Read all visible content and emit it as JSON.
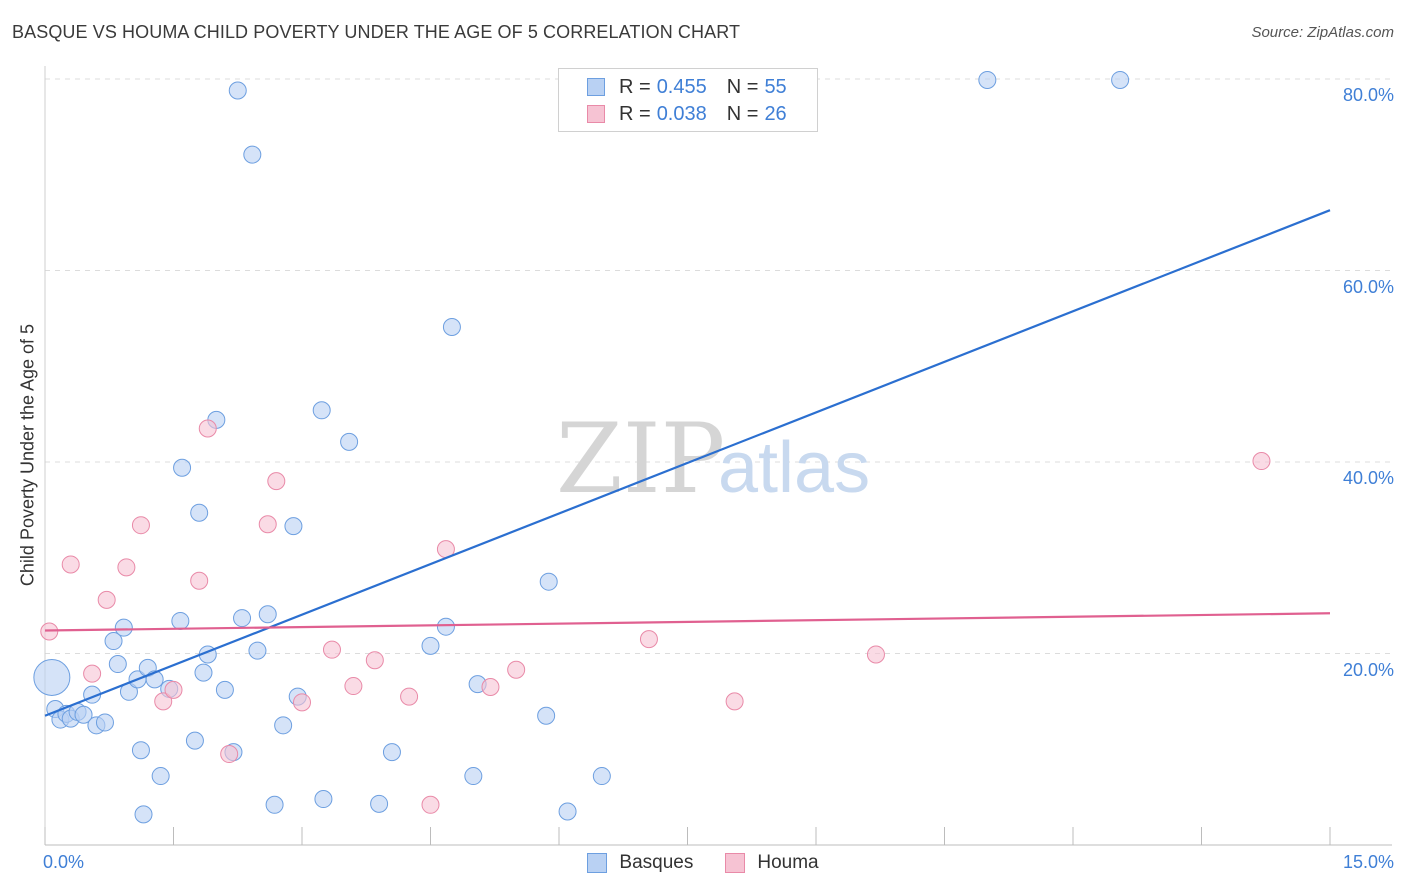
{
  "chart_data": {
    "type": "scatter",
    "title": "BASQUE VS HOUMA CHILD POVERTY UNDER THE AGE OF 5 CORRELATION CHART",
    "source": "Source: ZipAtlas.com",
    "xlabel": "",
    "ylabel": "Child Poverty Under the Age of 5",
    "xlim": [
      0,
      15
    ],
    "ylim": [
      0,
      80
    ],
    "x_ticks": [
      "0.0%",
      "15.0%"
    ],
    "y_ticks": [
      {
        "value": 20,
        "label": "20.0%"
      },
      {
        "value": 40,
        "label": "40.0%"
      },
      {
        "value": 60,
        "label": "60.0%"
      },
      {
        "value": 80,
        "label": "80.0%"
      }
    ],
    "watermark": {
      "zip": "ZIP",
      "atlas": "atlas"
    },
    "legend": [
      {
        "r_label": "R =",
        "r": "0.455",
        "n_label": "N =",
        "n": "55"
      },
      {
        "r_label": "R =",
        "r": "0.038",
        "n_label": "N =",
        "n": "26"
      }
    ],
    "series": [
      {
        "name": "Basques",
        "color": "#6d9fe0",
        "fill": "#b9d1f3",
        "line_color": "#2b6fd0",
        "trend": {
          "x": [
            0,
            15
          ],
          "y": [
            13.5,
            66.3
          ]
        },
        "points": [
          {
            "x": 0.08,
            "y": 17.5,
            "size": "large"
          },
          {
            "x": 0.12,
            "y": 14.2
          },
          {
            "x": 0.18,
            "y": 13.1
          },
          {
            "x": 0.25,
            "y": 13.7
          },
          {
            "x": 0.3,
            "y": 13.2
          },
          {
            "x": 0.38,
            "y": 13.9
          },
          {
            "x": 0.45,
            "y": 13.6
          },
          {
            "x": 0.55,
            "y": 15.7
          },
          {
            "x": 0.6,
            "y": 12.5
          },
          {
            "x": 0.7,
            "y": 12.8
          },
          {
            "x": 0.8,
            "y": 21.3
          },
          {
            "x": 0.85,
            "y": 18.9
          },
          {
            "x": 0.92,
            "y": 22.7
          },
          {
            "x": 0.98,
            "y": 16.0
          },
          {
            "x": 1.08,
            "y": 17.3
          },
          {
            "x": 1.2,
            "y": 18.5
          },
          {
            "x": 1.28,
            "y": 17.3
          },
          {
            "x": 1.12,
            "y": 9.9
          },
          {
            "x": 1.35,
            "y": 7.2
          },
          {
            "x": 1.15,
            "y": 3.2
          },
          {
            "x": 1.45,
            "y": 16.3
          },
          {
            "x": 1.58,
            "y": 23.4
          },
          {
            "x": 1.6,
            "y": 39.4
          },
          {
            "x": 1.75,
            "y": 10.9
          },
          {
            "x": 1.8,
            "y": 34.7
          },
          {
            "x": 1.85,
            "y": 18.0
          },
          {
            "x": 1.9,
            "y": 19.9
          },
          {
            "x": 2.0,
            "y": 44.4
          },
          {
            "x": 2.1,
            "y": 16.2
          },
          {
            "x": 2.2,
            "y": 9.7
          },
          {
            "x": 2.25,
            "y": 78.8
          },
          {
            "x": 2.3,
            "y": 23.7
          },
          {
            "x": 2.42,
            "y": 72.1
          },
          {
            "x": 2.48,
            "y": 20.3
          },
          {
            "x": 2.6,
            "y": 24.1
          },
          {
            "x": 2.68,
            "y": 4.2
          },
          {
            "x": 2.78,
            "y": 12.5
          },
          {
            "x": 2.9,
            "y": 33.3
          },
          {
            "x": 2.95,
            "y": 15.5
          },
          {
            "x": 3.23,
            "y": 45.4
          },
          {
            "x": 3.25,
            "y": 4.8
          },
          {
            "x": 3.55,
            "y": 42.1
          },
          {
            "x": 3.9,
            "y": 4.3
          },
          {
            "x": 4.05,
            "y": 9.7
          },
          {
            "x": 4.5,
            "y": 20.8
          },
          {
            "x": 4.68,
            "y": 22.8
          },
          {
            "x": 4.75,
            "y": 54.1
          },
          {
            "x": 5.0,
            "y": 7.2
          },
          {
            "x": 5.05,
            "y": 16.8
          },
          {
            "x": 5.85,
            "y": 13.5
          },
          {
            "x": 5.88,
            "y": 27.5
          },
          {
            "x": 6.1,
            "y": 3.5
          },
          {
            "x": 6.5,
            "y": 7.2
          },
          {
            "x": 11.0,
            "y": 79.9
          },
          {
            "x": 12.55,
            "y": 79.9
          }
        ]
      },
      {
        "name": "Houma",
        "color": "#e98aa8",
        "fill": "#f6c3d3",
        "line_color": "#e06090",
        "trend": {
          "x": [
            0,
            15
          ],
          "y": [
            22.4,
            24.2
          ]
        },
        "points": [
          {
            "x": 0.05,
            "y": 22.3
          },
          {
            "x": 0.3,
            "y": 29.3
          },
          {
            "x": 0.55,
            "y": 17.9
          },
          {
            "x": 0.72,
            "y": 25.6
          },
          {
            "x": 0.95,
            "y": 29.0
          },
          {
            "x": 1.12,
            "y": 33.4
          },
          {
            "x": 1.38,
            "y": 15.0
          },
          {
            "x": 1.5,
            "y": 16.2
          },
          {
            "x": 1.8,
            "y": 27.6
          },
          {
            "x": 1.9,
            "y": 43.5
          },
          {
            "x": 2.15,
            "y": 9.5
          },
          {
            "x": 2.6,
            "y": 33.5
          },
          {
            "x": 2.7,
            "y": 38.0
          },
          {
            "x": 3.0,
            "y": 14.9
          },
          {
            "x": 3.35,
            "y": 20.4
          },
          {
            "x": 3.6,
            "y": 16.6
          },
          {
            "x": 3.85,
            "y": 19.3
          },
          {
            "x": 4.25,
            "y": 15.5
          },
          {
            "x": 4.5,
            "y": 4.2
          },
          {
            "x": 4.68,
            "y": 30.9
          },
          {
            "x": 5.2,
            "y": 16.5
          },
          {
            "x": 5.5,
            "y": 18.3
          },
          {
            "x": 7.05,
            "y": 21.5
          },
          {
            "x": 8.05,
            "y": 15.0
          },
          {
            "x": 9.7,
            "y": 19.9
          },
          {
            "x": 14.2,
            "y": 40.1
          }
        ]
      }
    ]
  }
}
